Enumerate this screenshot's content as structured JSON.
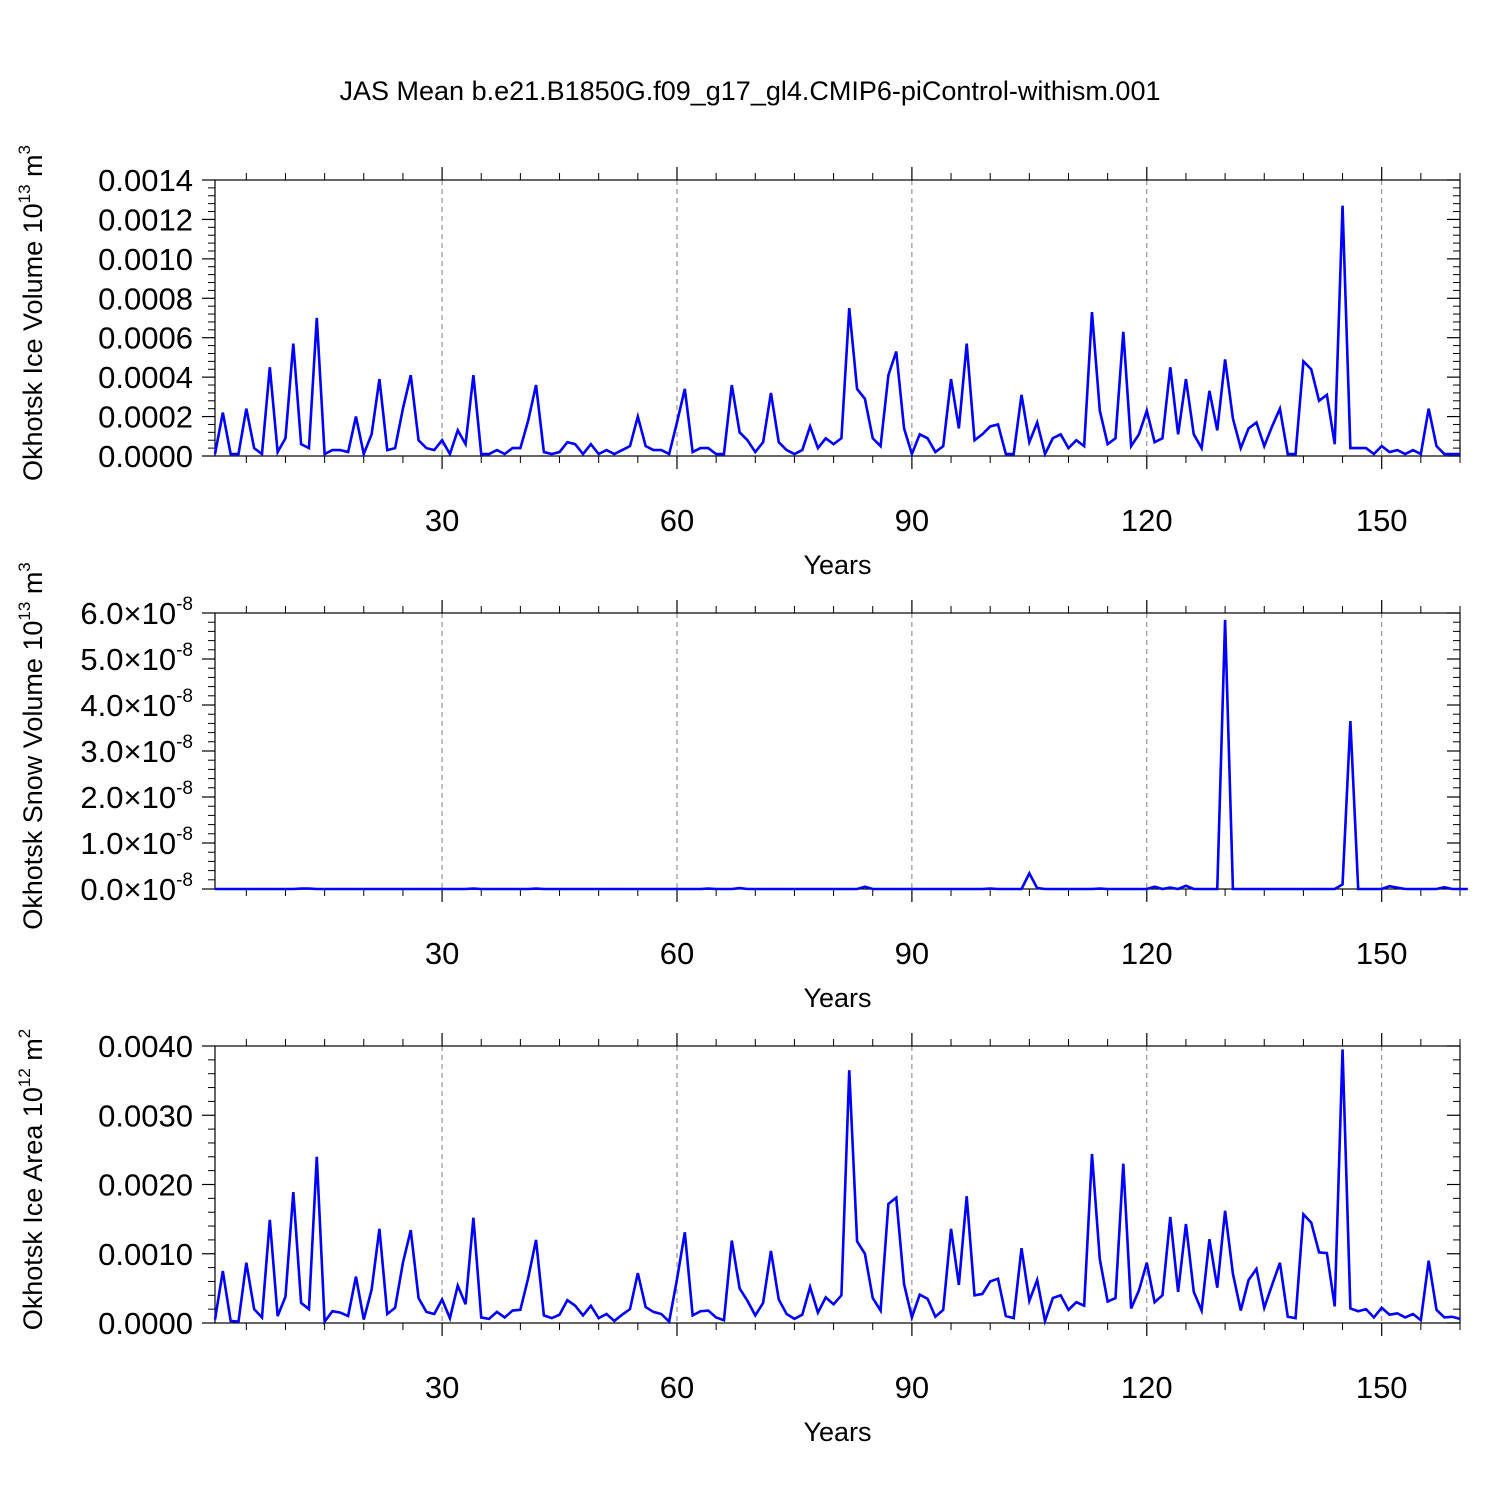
{
  "title": "JAS Mean b.e21.B1850G.f09_g17_gl4.CMIP6-piControl-withism.001",
  "colors": {
    "line": "#0000ff",
    "axis": "#000000",
    "grid": "#7f7f7f"
  },
  "chart_data": [
    {
      "type": "line",
      "ylabel": "Okhotsk Ice Volume 10",
      "ylabel_exp": "13",
      "ylabel_unit": " m",
      "ylabel_unit_exp": "3",
      "xlabel": "Years",
      "xlim": [
        1,
        160
      ],
      "ylim": [
        0,
        0.0014
      ],
      "xticks": [
        30,
        60,
        90,
        120,
        150
      ],
      "yticks": [
        0,
        0.0002,
        0.0004,
        0.0006,
        0.0008,
        0.001,
        0.0012,
        0.0014
      ],
      "ytick_labels": [
        "0.0000",
        "0.0002",
        "0.0004",
        "0.0006",
        "0.0008",
        "0.0010",
        "0.0012",
        "0.0014"
      ],
      "grid": "vertical dashed at x ticks",
      "series": [
        {
          "x_start": 1,
          "values": [
            1e-05,
            0.00022,
            1e-05,
            1e-05,
            0.00024,
            4e-05,
            1e-05,
            0.00045,
            2e-05,
            9e-05,
            0.00057,
            6e-05,
            4e-05,
            0.0007,
            1e-05,
            3e-05,
            3e-05,
            2e-05,
            0.0002,
            1e-05,
            0.00011,
            0.00039,
            3e-05,
            4e-05,
            0.00024,
            0.00041,
            8e-05,
            4e-05,
            3e-05,
            8e-05,
            1e-05,
            0.00013,
            6e-05,
            0.00041,
            1e-05,
            1e-05,
            3e-05,
            1e-05,
            4e-05,
            4e-05,
            0.00018,
            0.00036,
            2e-05,
            1e-05,
            2e-05,
            7e-05,
            6e-05,
            1e-05,
            6e-05,
            1e-05,
            3e-05,
            1e-05,
            3e-05,
            5e-05,
            0.0002,
            5e-05,
            3e-05,
            3e-05,
            1e-05,
            0.00017,
            0.00034,
            2e-05,
            4e-05,
            4e-05,
            1e-05,
            1e-05,
            0.00036,
            0.00012,
            8e-05,
            2e-05,
            7e-05,
            0.00032,
            7e-05,
            3e-05,
            1e-05,
            3e-05,
            0.00015,
            4e-05,
            9e-05,
            6e-05,
            9e-05,
            0.00075,
            0.00034,
            0.00029,
            9e-05,
            5e-05,
            0.00041,
            0.00053,
            0.00014,
            1e-05,
            0.00011,
            9e-05,
            2e-05,
            5e-05,
            0.00039,
            0.00014,
            0.00057,
            8e-05,
            0.00011,
            0.00015,
            0.00016,
            1e-05,
            1e-05,
            0.00031,
            7e-05,
            0.00017,
            1e-05,
            9e-05,
            0.00011,
            4e-05,
            8e-05,
            5e-05,
            0.00073,
            0.00023,
            6e-05,
            9e-05,
            0.00063,
            5e-05,
            0.00011,
            0.00023,
            7e-05,
            9e-05,
            0.00045,
            0.00011,
            0.00039,
            0.00011,
            4e-05,
            0.00033,
            0.00013,
            0.00049,
            0.00019,
            4e-05,
            0.00014,
            0.00017,
            5e-05,
            0.00015,
            0.00024,
            1e-05,
            1e-05,
            0.00048,
            0.00044,
            0.00028,
            0.00031,
            6e-05,
            0.00127,
            4e-05,
            4e-05,
            4e-05,
            1e-05,
            5e-05,
            2e-05,
            3e-05,
            1e-05,
            3e-05,
            1e-05,
            0.00024,
            5e-05,
            1e-05,
            1e-05,
            1e-05
          ]
        }
      ]
    },
    {
      "type": "line",
      "ylabel": "Okhotsk Snow Volume 10",
      "ylabel_exp": "13",
      "ylabel_unit": " m",
      "ylabel_unit_exp": "3",
      "xlabel": "Years",
      "xlim": [
        1,
        160
      ],
      "ylim": [
        0,
        6e-08
      ],
      "xticks": [
        30,
        60,
        90,
        120,
        150
      ],
      "yticks": [
        0,
        1e-08,
        2e-08,
        3e-08,
        4e-08,
        5e-08,
        6e-08
      ],
      "ytick_mantissa": [
        "0.0",
        "1.0",
        "2.0",
        "3.0",
        "4.0",
        "5.0",
        "6.0"
      ],
      "ytick_times": "×10",
      "ytick_exp": "-8",
      "grid": "vertical dashed at x ticks",
      "series": [
        {
          "x_start": 1,
          "values": [
            0,
            0,
            0,
            0,
            0,
            0,
            0,
            0,
            0,
            0,
            0,
            1e-10,
            1e-10,
            0,
            0,
            0,
            0,
            0,
            0,
            0,
            0,
            0,
            0,
            0,
            0,
            0,
            0,
            0,
            0,
            0,
            0,
            0,
            0,
            1e-10,
            0,
            0,
            0,
            0,
            0,
            0,
            0,
            1e-10,
            0,
            0,
            0,
            0,
            0,
            0,
            0,
            0,
            0,
            0,
            0,
            0,
            0,
            0,
            0,
            0,
            0,
            0,
            0,
            0,
            0,
            1e-10,
            0,
            0,
            0,
            2e-10,
            0,
            0,
            0,
            0,
            0,
            0,
            0,
            0,
            0,
            0,
            0,
            0,
            0,
            0,
            0,
            5e-10,
            0,
            0,
            0,
            0,
            0,
            0,
            0,
            0,
            0,
            0,
            0,
            0,
            0,
            0,
            0,
            1e-10,
            0,
            0,
            0,
            0,
            3.4e-09,
            2e-10,
            0,
            0,
            0,
            0,
            0,
            0,
            0,
            1e-10,
            0,
            0,
            0,
            0,
            0,
            0,
            5e-10,
            0,
            3e-10,
            0,
            7e-10,
            0,
            0,
            0,
            0,
            5.85e-08,
            0,
            0,
            0,
            0,
            0,
            0,
            0,
            0,
            0,
            0,
            0,
            0,
            0,
            0,
            1e-09,
            3.65e-08,
            0,
            0,
            0,
            0,
            6e-10,
            3e-10,
            0,
            0,
            0,
            0,
            0,
            4e-10,
            0,
            0,
            0
          ]
        }
      ]
    },
    {
      "type": "line",
      "ylabel": "Okhotsk Ice Area 10",
      "ylabel_exp": "12",
      "ylabel_unit": " m",
      "ylabel_unit_exp": "2",
      "xlabel": "Years",
      "xlim": [
        1,
        160
      ],
      "ylim": [
        0,
        0.004
      ],
      "xticks": [
        30,
        60,
        90,
        120,
        150
      ],
      "yticks": [
        0,
        0.001,
        0.002,
        0.003,
        0.004
      ],
      "ytick_labels": [
        "0.0000",
        "0.0010",
        "0.0020",
        "0.0030",
        "0.0040"
      ],
      "grid": "vertical dashed at x ticks",
      "series": [
        {
          "x_start": 1,
          "values": [
            5e-05,
            0.00075,
            3e-05,
            2e-05,
            0.00087,
            0.0002,
            8e-05,
            0.00149,
            0.0001,
            0.00038,
            0.00189,
            0.00029,
            0.0002,
            0.0024,
            2e-05,
            0.00017,
            0.00015,
            0.0001,
            0.00067,
            5e-05,
            0.00048,
            0.00136,
            0.00013,
            0.00022,
            0.00087,
            0.00134,
            0.00036,
            0.00016,
            0.00013,
            0.00034,
            7e-05,
            0.00054,
            0.00027,
            0.00152,
            8e-05,
            6e-05,
            0.00016,
            8e-05,
            0.00018,
            0.00019,
            0.00065,
            0.0012,
            0.00011,
            7e-05,
            0.00012,
            0.00033,
            0.00025,
            0.00011,
            0.00025,
            7e-05,
            0.00013,
            3e-05,
            0.00012,
            0.0002,
            0.00072,
            0.00023,
            0.00016,
            0.00013,
            2e-05,
            0.00063,
            0.00131,
            0.00011,
            0.00017,
            0.00018,
            8e-05,
            4e-05,
            0.00119,
            0.0005,
            0.00032,
            0.00011,
            0.00029,
            0.00104,
            0.00034,
            0.00013,
            6e-05,
            0.00012,
            0.00052,
            0.00015,
            0.00037,
            0.00027,
            0.0004,
            0.00365,
            0.00118,
            0.001,
            0.00036,
            0.00018,
            0.00172,
            0.00181,
            0.00056,
            8e-05,
            0.00041,
            0.00035,
            9e-05,
            0.00019,
            0.00136,
            0.00055,
            0.00183,
            0.0004,
            0.00042,
            0.0006,
            0.00064,
            0.0001,
            7e-05,
            0.00108,
            0.00032,
            0.00062,
            3e-05,
            0.00036,
            0.0004,
            0.00019,
            0.0003,
            0.00025,
            0.00244,
            0.00092,
            0.00031,
            0.00036,
            0.0023,
            0.00021,
            0.00047,
            0.00087,
            0.0003,
            0.0004,
            0.00153,
            0.00045,
            0.00143,
            0.00045,
            0.00018,
            0.00121,
            0.00051,
            0.00162,
            0.00071,
            0.00018,
            0.00062,
            0.00078,
            0.00022,
            0.00055,
            0.00087,
            9e-05,
            7e-05,
            0.00157,
            0.00145,
            0.00102,
            0.00101,
            0.00024,
            0.00395,
            0.00021,
            0.00017,
            0.0002,
            8e-05,
            0.00022,
            0.00012,
            0.00014,
            8e-05,
            0.00013,
            4e-05,
            0.0009,
            0.00019,
            8e-05,
            9e-05,
            6e-05
          ]
        }
      ]
    }
  ]
}
